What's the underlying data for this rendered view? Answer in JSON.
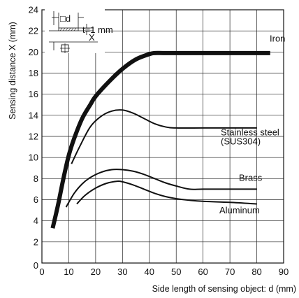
{
  "chart_data": {
    "type": "line",
    "title": "",
    "xlabel": "Side length of sensing object: d (mm)",
    "ylabel": "Sensing distance X (mm)",
    "xlim": [
      0,
      90
    ],
    "ylim": [
      0,
      24
    ],
    "xticks": [
      0,
      10,
      20,
      30,
      40,
      50,
      60,
      70,
      80,
      90
    ],
    "yticks": [
      2,
      4,
      6,
      8,
      10,
      12,
      14,
      16,
      18,
      20,
      22,
      24
    ],
    "grid": true,
    "series": [
      {
        "name": "Iron",
        "label_lines": [
          "Iron"
        ],
        "x": [
          4,
          6,
          8,
          10,
          12,
          15,
          18,
          20,
          25,
          30,
          35,
          40,
          42,
          45,
          50,
          60,
          70,
          80,
          85
        ],
        "y": [
          3.3,
          5.5,
          8.0,
          10.2,
          11.8,
          13.7,
          15.0,
          15.8,
          17.2,
          18.4,
          19.3,
          19.8,
          19.9,
          19.9,
          19.9,
          19.9,
          19.9,
          19.9,
          19.9
        ]
      },
      {
        "name": "Stainless steel (SUS304)",
        "label_lines": [
          "Stainless steel",
          "(SUS304)"
        ],
        "x": [
          11,
          14,
          18,
          22,
          26,
          30,
          34,
          38,
          42,
          46,
          50,
          60,
          70,
          80
        ],
        "y": [
          9.4,
          11.0,
          12.9,
          13.9,
          14.4,
          14.5,
          14.2,
          13.7,
          13.2,
          12.9,
          12.8,
          12.8,
          12.8,
          12.8
        ]
      },
      {
        "name": "Brass",
        "label_lines": [
          "Brass"
        ],
        "x": [
          9,
          12,
          15,
          18,
          22,
          26,
          30,
          34,
          38,
          42,
          46,
          50,
          55,
          60,
          70,
          80
        ],
        "y": [
          5.3,
          6.6,
          7.5,
          8.1,
          8.6,
          8.85,
          8.85,
          8.7,
          8.4,
          8.0,
          7.6,
          7.3,
          7.0,
          7.0,
          7.0,
          7.0
        ]
      },
      {
        "name": "Aluminum",
        "label_lines": [
          "Aluminum"
        ],
        "x": [
          13,
          16,
          20,
          24,
          28,
          30,
          34,
          38,
          42,
          46,
          50,
          55,
          60,
          70,
          80
        ],
        "y": [
          5.6,
          6.4,
          7.1,
          7.55,
          7.75,
          7.7,
          7.4,
          7.0,
          6.6,
          6.3,
          6.1,
          5.95,
          5.85,
          5.75,
          5.6
        ]
      }
    ],
    "inset": {
      "d_label": "□d",
      "x_label": "X",
      "thickness_label": "t=1 mm"
    }
  }
}
